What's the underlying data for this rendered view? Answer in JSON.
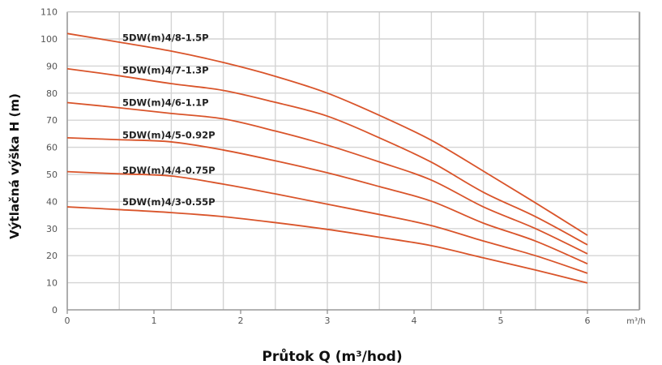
{
  "chart_data": {
    "type": "line",
    "title": "",
    "xlabel": "Průtok Q (m³/hod)",
    "ylabel": "Výtlačná výška H (m)",
    "x_unit_label": "m³/h",
    "xlim": [
      0,
      6.6
    ],
    "ylim": [
      0,
      110
    ],
    "x_ticks": [
      0,
      1,
      2,
      3,
      4,
      5,
      6
    ],
    "y_ticks": [
      0,
      10,
      20,
      30,
      40,
      50,
      60,
      70,
      80,
      90,
      100,
      110
    ],
    "x_grid": [
      0.6,
      1.2,
      1.8,
      2.4,
      3.0,
      3.6,
      4.2,
      4.8,
      5.4,
      6.0
    ],
    "grid": true,
    "legend_position": "inline labels near curves",
    "line_color": "#d9542a",
    "x": [
      0,
      0.6,
      1.2,
      1.8,
      2.4,
      3.0,
      3.6,
      4.2,
      4.8,
      5.4,
      6.0
    ],
    "series": [
      {
        "name": "5DW(m)4/8-1.5P",
        "values": [
          102,
          98.8,
          95.5,
          91.3,
          86.2,
          80,
          71.8,
          62.6,
          51.2,
          39.5,
          27.5
        ],
        "label_y": 100.5
      },
      {
        "name": "5DW(m)4/7-1.3P",
        "values": [
          89,
          86.4,
          83.5,
          81,
          76.6,
          71.5,
          63.5,
          54.5,
          43.4,
          34.4,
          24
        ],
        "label_y": 88.5
      },
      {
        "name": "5DW(m)4/6-1.1P",
        "values": [
          76.5,
          74.6,
          72.5,
          70.5,
          66,
          60.8,
          54.6,
          47.9,
          38,
          30,
          20.7
        ],
        "label_y": 76.5
      },
      {
        "name": "5DW(m)4/5-0.92P",
        "values": [
          63.5,
          62.8,
          62,
          59,
          55,
          50.6,
          45.5,
          40.1,
          32,
          25.4,
          17
        ],
        "label_y": 64.5
      },
      {
        "name": "5DW(m)4/4-0.75P",
        "values": [
          51,
          50.2,
          49.4,
          46.4,
          42.8,
          39,
          35.2,
          31.1,
          25.4,
          20,
          13.5
        ],
        "label_y": 51.5
      },
      {
        "name": "5DW(m)4/3-0.55P",
        "values": [
          38,
          37,
          35.9,
          34.4,
          32.2,
          29.7,
          26.8,
          23.7,
          19.2,
          14.7,
          9.9
        ],
        "label_y": 39.8
      }
    ]
  }
}
